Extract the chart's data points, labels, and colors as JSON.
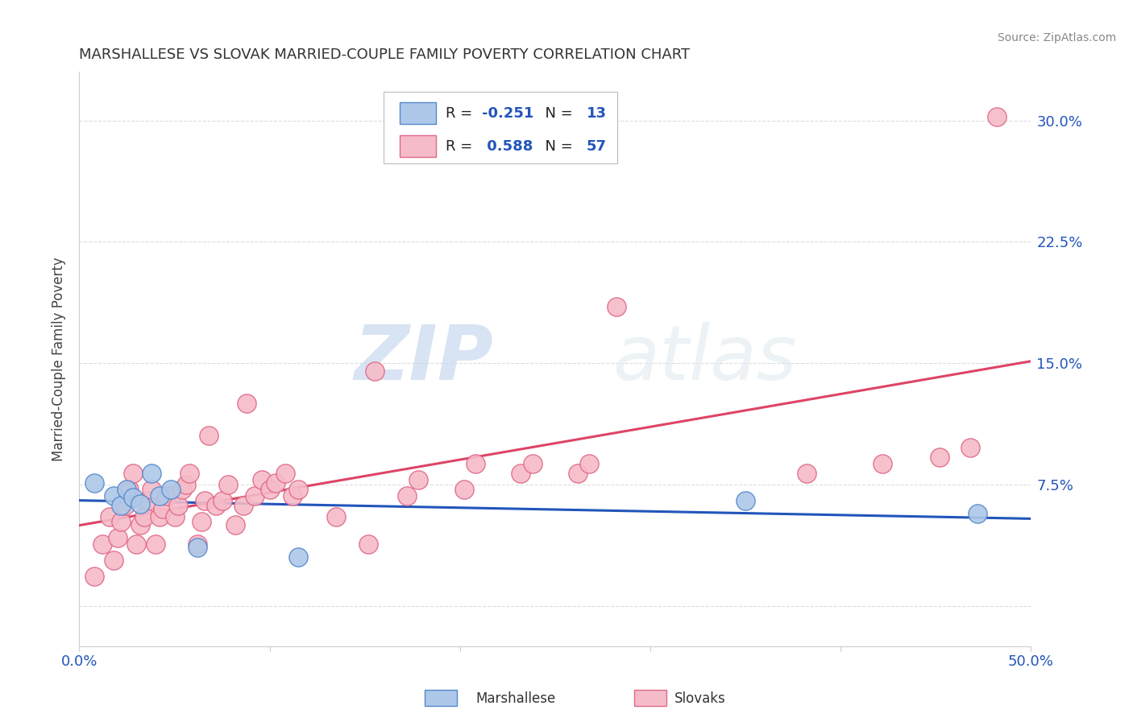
{
  "title": "MARSHALLESE VS SLOVAK MARRIED-COUPLE FAMILY POVERTY CORRELATION CHART",
  "source": "Source: ZipAtlas.com",
  "ylabel": "Married-Couple Family Poverty",
  "ytick_values": [
    0.0,
    0.075,
    0.15,
    0.225,
    0.3
  ],
  "ytick_labels": [
    "",
    "7.5%",
    "15.0%",
    "22.5%",
    "30.0%"
  ],
  "xtick_values": [
    0.0,
    0.1,
    0.2,
    0.3,
    0.4,
    0.5
  ],
  "xtick_labels": [
    "0.0%",
    "",
    "",
    "",
    "",
    "50.0%"
  ],
  "xlim": [
    0.0,
    0.5
  ],
  "ylim": [
    -0.025,
    0.33
  ],
  "marshallese_color": "#adc8e8",
  "marshallese_edge": "#5588cc",
  "slovak_color": "#f5bbc8",
  "slovak_edge": "#e06888",
  "trend_blue": "#2255bb",
  "trend_pink": "#dd4466",
  "legend_label_color": "#2255bb",
  "legend_text_color": "#222222",
  "marshallese_x": [
    0.008,
    0.018,
    0.022,
    0.025,
    0.028,
    0.032,
    0.038,
    0.042,
    0.048,
    0.062,
    0.115,
    0.35,
    0.472
  ],
  "marshallese_y": [
    0.076,
    0.068,
    0.062,
    0.072,
    0.067,
    0.063,
    0.082,
    0.068,
    0.072,
    0.036,
    0.03,
    0.065,
    0.057
  ],
  "slovak_x": [
    0.008,
    0.012,
    0.016,
    0.018,
    0.02,
    0.022,
    0.024,
    0.026,
    0.028,
    0.03,
    0.032,
    0.034,
    0.036,
    0.038,
    0.04,
    0.042,
    0.044,
    0.046,
    0.05,
    0.052,
    0.054,
    0.056,
    0.058,
    0.062,
    0.064,
    0.066,
    0.068,
    0.072,
    0.075,
    0.078,
    0.082,
    0.086,
    0.088,
    0.092,
    0.096,
    0.1,
    0.103,
    0.108,
    0.112,
    0.115,
    0.135,
    0.152,
    0.155,
    0.172,
    0.178,
    0.202,
    0.208,
    0.232,
    0.238,
    0.262,
    0.268,
    0.282,
    0.382,
    0.422,
    0.452,
    0.468,
    0.482
  ],
  "slovak_y": [
    0.018,
    0.038,
    0.055,
    0.028,
    0.042,
    0.052,
    0.062,
    0.072,
    0.082,
    0.038,
    0.05,
    0.055,
    0.065,
    0.072,
    0.038,
    0.055,
    0.06,
    0.068,
    0.055,
    0.062,
    0.072,
    0.075,
    0.082,
    0.038,
    0.052,
    0.065,
    0.105,
    0.062,
    0.065,
    0.075,
    0.05,
    0.062,
    0.125,
    0.068,
    0.078,
    0.072,
    0.076,
    0.082,
    0.068,
    0.072,
    0.055,
    0.038,
    0.145,
    0.068,
    0.078,
    0.072,
    0.088,
    0.082,
    0.088,
    0.082,
    0.088,
    0.185,
    0.082,
    0.088,
    0.092,
    0.098,
    0.302
  ],
  "watermark_zip": "ZIP",
  "watermark_atlas": "atlas",
  "background_color": "#ffffff",
  "grid_color": "#dddddd",
  "axis_color": "#cccccc"
}
